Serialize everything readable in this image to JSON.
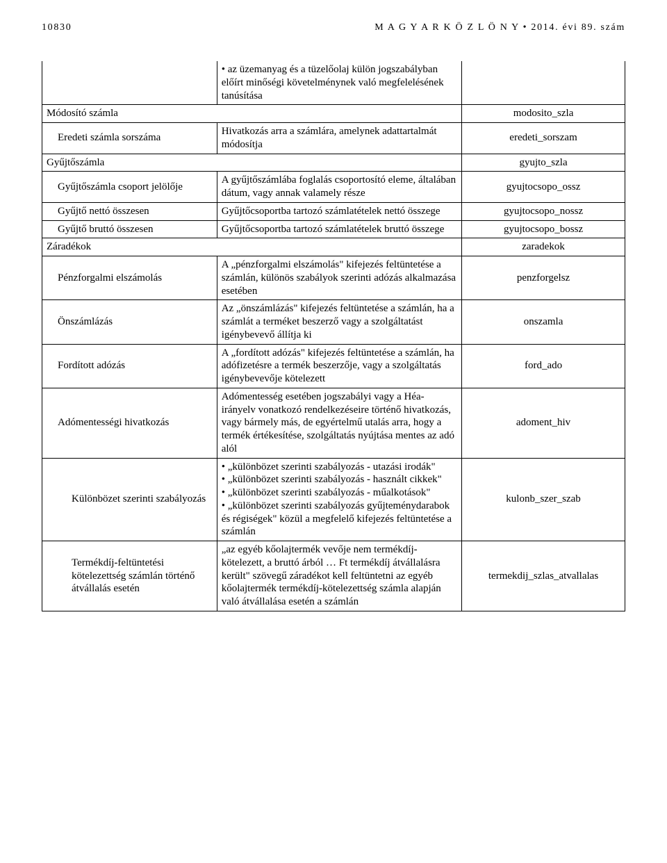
{
  "header": {
    "page_number": "10830",
    "title": "M A G Y A R   K Ö Z L Ö N Y  •  2014. évi 89. szám"
  },
  "rows": [
    {
      "col1": "",
      "col2": "• az üzemanyag és a tüzelőolaj külön jogszabályban előírt minőségi követelménynek való megfelelésének tanúsítása",
      "col3": "",
      "indent": 0,
      "no_top_border": true
    },
    {
      "col1": "Módosító számla",
      "col2": "",
      "col3": "modosito_szla",
      "indent": 0,
      "span12": true
    },
    {
      "col1": "Eredeti számla sorszáma",
      "col2": "Hivatkozás arra a számlára, amelynek adattartalmát módosítja",
      "col3": "eredeti_sorszam",
      "indent": 1
    },
    {
      "col1": "Gyűjtőszámla",
      "col2": "",
      "col3": "gyujto_szla",
      "indent": 0,
      "span12": true
    },
    {
      "col1": "Gyűjtőszámla csoport jelölője",
      "col2": "A gyűjtőszámlába foglalás csoportosító eleme, általában dátum, vagy annak valamely része",
      "col3": "gyujtocsopo_ossz",
      "indent": 1
    },
    {
      "col1": "Gyűjtő nettó összesen",
      "col2": "Gyűjtőcsoportba tartozó számlatételek nettó összege",
      "col3": "gyujtocsopo_nossz",
      "indent": 1
    },
    {
      "col1": "Gyűjtő bruttó összesen",
      "col2": "Gyűjtőcsoportba tartozó számlatételek bruttó összege",
      "col3": "gyujtocsopo_bossz",
      "indent": 1
    },
    {
      "col1": "Záradékok",
      "col2": "",
      "col3": "zaradekok",
      "indent": 0,
      "span12": true
    },
    {
      "col1": "Pénzforgalmi elszámolás",
      "col2": "A „pénzforgalmi elszámolás\" kifejezés feltüntetése a számlán, különös szabályok szerinti adózás alkalmazása esetében",
      "col3": "penzforgelsz",
      "indent": 1
    },
    {
      "col1": "Önszámlázás",
      "col2": "Az „önszámlázás\" kifejezés feltüntetése a számlán, ha a számlát a terméket beszerző vagy a szolgáltatást igénybevevő állítja ki",
      "col3": "onszamla",
      "indent": 1
    },
    {
      "col1": "Fordított adózás",
      "col2": "A „fordított adózás\" kifejezés feltüntetése a számlán, ha adófizetésre a termék beszerzője, vagy a szolgáltatás igénybevevője kötelezett",
      "col3": "ford_ado",
      "indent": 1
    },
    {
      "col1": "Adómentességi hivatkozás",
      "col2": "Adómentesség esetében jogszabályi vagy a Héa-irányelv vonatkozó rendelkezéseire történő hivatkozás, vagy bármely más, de egyértelmű utalás arra, hogy a termék értékesítése, szolgáltatás nyújtása mentes az adó alól",
      "col3": "adoment_hiv",
      "indent": 1
    },
    {
      "col1": "Különbözet szerinti szabályozás",
      "col2": "• „különbözet szerinti szabályozás - utazási irodák\"\n• „különbözet szerinti szabályozás - használt cikkek\"\n• „különbözet szerinti szabályozás - műalkotások\"\n• „különbözet szerinti szabályozás gyűjteménydarabok és régiségek\" közül a megfelelő kifejezés feltüntetése a számlán",
      "col3": "kulonb_szer_szab",
      "indent": 2
    },
    {
      "col1": "Termékdíj-feltüntetési kötelezettség számlán történő átvállalás esetén",
      "col2": "„az egyéb kőolajtermék vevője nem termékdíj-kötelezett, a bruttó árból … Ft termékdíj átvállalásra került\" szövegű záradékot kell feltüntetni az egyéb kőolajtermék termékdíj-kötelezettség számla alapján való átvállalása esetén a számlán",
      "col3": "termekdij_szlas_atvallalas",
      "indent": 2
    }
  ]
}
